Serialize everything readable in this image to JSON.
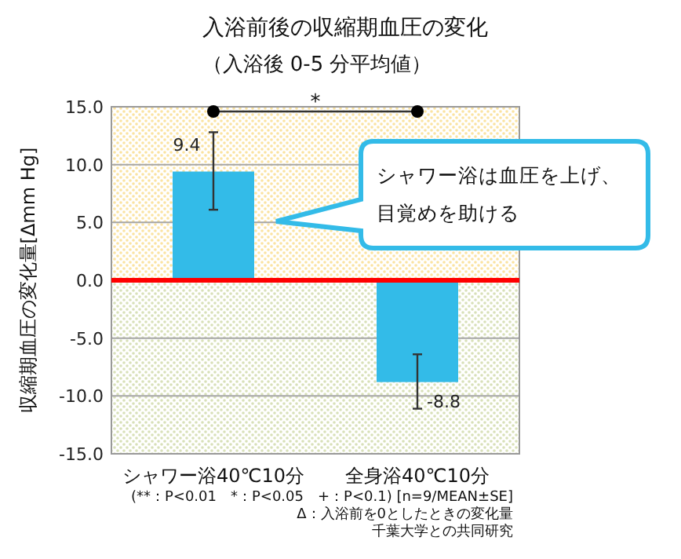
{
  "chart_data": {
    "type": "bar",
    "title": "入浴前後の収縮期血圧の変化",
    "subtitle": "（入浴後 0-5 分平均値）",
    "ylabel": "収縮期血圧の変化量[Δmm Hg]",
    "categories": [
      "シャワー浴40℃10分",
      "全身浴40℃10分"
    ],
    "series": [
      {
        "color": "#33bbe8",
        "values": [
          9.4,
          -8.8
        ],
        "errors": [
          [
            6.1,
            12.8
          ],
          [
            -11.1,
            -6.4
          ]
        ]
      }
    ],
    "data_labels": true,
    "ylim": [
      -15,
      15
    ],
    "yticks": [
      {
        "value": -15,
        "label": "-15.0"
      },
      {
        "value": -10,
        "label": "-10.0"
      },
      {
        "value": -5,
        "label": "-5.0"
      },
      {
        "value": 0,
        "label": "0.0"
      },
      {
        "value": 5,
        "label": "5.0"
      },
      {
        "value": 10,
        "label": "10.0"
      },
      {
        "value": 15,
        "label": "15.0"
      }
    ],
    "grid": "y",
    "ref_lines": [
      {
        "axis": "y",
        "value": 0,
        "color": "#ff0000"
      }
    ],
    "bands": [
      {
        "axis": "y",
        "from": 0,
        "to": 15,
        "color": "#fbe3a0"
      },
      {
        "axis": "y",
        "from": -15,
        "to": 0,
        "color": "#d8e0b8"
      }
    ],
    "annotations": [
      "シャワー浴は血圧を上げ、目覚めを助ける",
      "*",
      "(**：P<0.01　*：P<0.05　+：P<0.1) [n=9/MEAN±SE]",
      "Δ：入浴前を0としたときの変化量",
      "千葉大学との共同研究"
    ]
  }
}
